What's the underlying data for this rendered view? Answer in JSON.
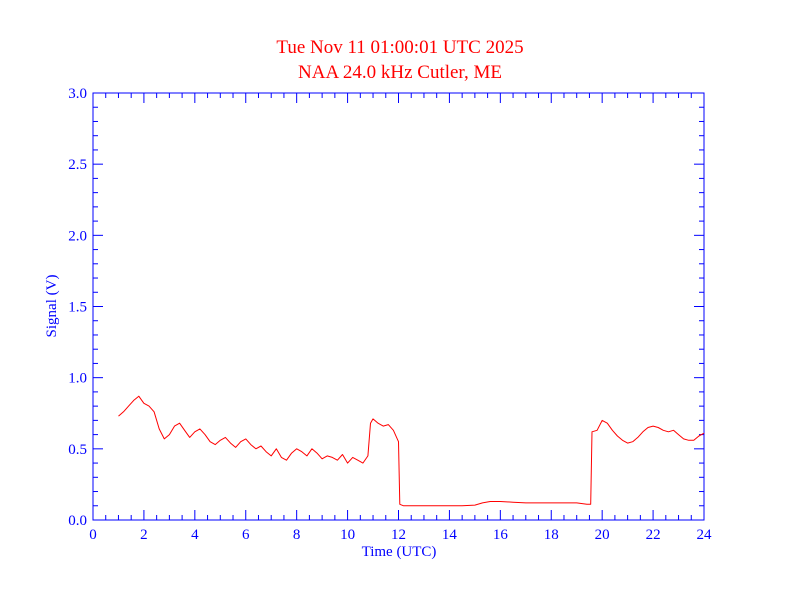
{
  "chart_data": {
    "type": "line",
    "title": "Tue Nov 11 01:00:01 UTC 2025",
    "subtitle": "NAA 24.0 kHz Cutler, ME",
    "xlabel": "Time (UTC)",
    "ylabel": "Signal (V)",
    "xlim": [
      0,
      24
    ],
    "ylim": [
      0,
      3.0
    ],
    "x_ticks": [
      "0",
      "2",
      "4",
      "6",
      "8",
      "10",
      "12",
      "14",
      "16",
      "18",
      "20",
      "22",
      "24"
    ],
    "y_ticks": [
      "0.0",
      "0.5",
      "1.0",
      "1.5",
      "2.0",
      "2.5",
      "3.0"
    ],
    "grid": false,
    "colors": {
      "axis": "#0000ff",
      "series": "#ff0000",
      "title": "#ff0000"
    },
    "series": [
      {
        "x": [
          1.0,
          1.2,
          1.4,
          1.6,
          1.8,
          2.0,
          2.2,
          2.4,
          2.6,
          2.8,
          3.0,
          3.2,
          3.4,
          3.6,
          3.8,
          4.0,
          4.2,
          4.4,
          4.6,
          4.8,
          5.0,
          5.2,
          5.4,
          5.6,
          5.8,
          6.0,
          6.2,
          6.4,
          6.6,
          6.8,
          7.0,
          7.2,
          7.4,
          7.6,
          7.8,
          8.0,
          8.2,
          8.4,
          8.6,
          8.8,
          9.0,
          9.2,
          9.4,
          9.6,
          9.8,
          10.0,
          10.2,
          10.4,
          10.6,
          10.8,
          10.9,
          11.0,
          11.2,
          11.4,
          11.6,
          11.8,
          12.0,
          12.05,
          12.2,
          12.5,
          13.0,
          13.5,
          14.0,
          14.5,
          15.0,
          15.3,
          15.6,
          16.0,
          16.5,
          17.0,
          17.5,
          18.0,
          18.5,
          19.0,
          19.4,
          19.55,
          19.6,
          19.8,
          20.0,
          20.2,
          20.4,
          20.6,
          20.8,
          21.0,
          21.2,
          21.4,
          21.6,
          21.8,
          22.0,
          22.2,
          22.4,
          22.6,
          22.8,
          23.0,
          23.2,
          23.4,
          23.6,
          23.8,
          24.0
        ],
        "y": [
          0.73,
          0.76,
          0.8,
          0.84,
          0.87,
          0.82,
          0.8,
          0.76,
          0.64,
          0.57,
          0.6,
          0.66,
          0.68,
          0.63,
          0.58,
          0.62,
          0.64,
          0.6,
          0.55,
          0.53,
          0.56,
          0.58,
          0.54,
          0.51,
          0.55,
          0.57,
          0.53,
          0.5,
          0.52,
          0.48,
          0.45,
          0.5,
          0.44,
          0.42,
          0.47,
          0.5,
          0.48,
          0.45,
          0.5,
          0.47,
          0.43,
          0.45,
          0.44,
          0.42,
          0.46,
          0.4,
          0.44,
          0.42,
          0.4,
          0.45,
          0.68,
          0.71,
          0.68,
          0.66,
          0.67,
          0.63,
          0.55,
          0.11,
          0.1,
          0.1,
          0.1,
          0.1,
          0.1,
          0.1,
          0.105,
          0.12,
          0.13,
          0.13,
          0.125,
          0.12,
          0.12,
          0.12,
          0.12,
          0.12,
          0.11,
          0.11,
          0.62,
          0.63,
          0.7,
          0.68,
          0.63,
          0.59,
          0.56,
          0.54,
          0.55,
          0.58,
          0.62,
          0.65,
          0.66,
          0.65,
          0.63,
          0.62,
          0.63,
          0.6,
          0.57,
          0.56,
          0.56,
          0.59,
          0.61
        ]
      }
    ]
  }
}
